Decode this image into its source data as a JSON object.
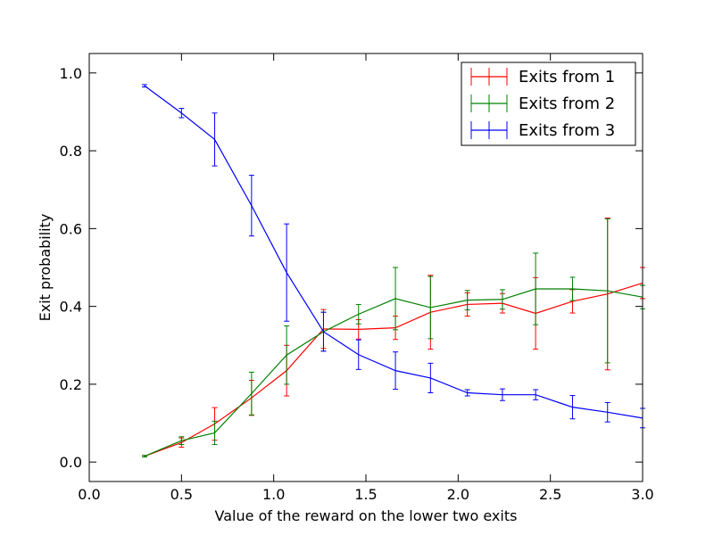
{
  "chart_data": {
    "type": "line",
    "title": "",
    "xlabel": "Value of the reward on the lower two exits",
    "ylabel": "Exit probability",
    "xlim": [
      0.0,
      3.0
    ],
    "ylim": [
      -0.05,
      1.05
    ],
    "x_ticks": [
      {
        "value": 0.0,
        "label": "0.0"
      },
      {
        "value": 0.5,
        "label": "0.5"
      },
      {
        "value": 1.0,
        "label": "1.0"
      },
      {
        "value": 1.5,
        "label": "1.5"
      },
      {
        "value": 2.0,
        "label": "2.0"
      },
      {
        "value": 2.5,
        "label": "2.5"
      },
      {
        "value": 3.0,
        "label": "3.0"
      }
    ],
    "y_ticks": [
      {
        "value": 0.0,
        "label": "0.0"
      },
      {
        "value": 0.2,
        "label": "0.2"
      },
      {
        "value": 0.4,
        "label": "0.4"
      },
      {
        "value": 0.6,
        "label": "0.6"
      },
      {
        "value": 0.8,
        "label": "0.8"
      },
      {
        "value": 1.0,
        "label": "1.0"
      }
    ],
    "grid": false,
    "legend_position": "top-right",
    "x": [
      0.3,
      0.5,
      0.68,
      0.88,
      1.07,
      1.27,
      1.46,
      1.66,
      1.85,
      2.05,
      2.24,
      2.42,
      2.62,
      2.81,
      3.0
    ],
    "series": [
      {
        "name": "Exits from 1",
        "color": "#ff0000",
        "values": [
          0.015,
          0.05,
          0.098,
          0.165,
          0.235,
          0.342,
          0.341,
          0.345,
          0.385,
          0.405,
          0.408,
          0.382,
          0.413,
          0.432,
          0.46
        ],
        "errors": [
          0.002,
          0.012,
          0.042,
          0.045,
          0.065,
          0.05,
          0.025,
          0.03,
          0.095,
          0.03,
          0.025,
          0.092,
          0.03,
          0.195,
          0.04
        ]
      },
      {
        "name": "Exits from 2",
        "color": "#008000",
        "values": [
          0.015,
          0.055,
          0.075,
          0.176,
          0.275,
          0.335,
          0.38,
          0.42,
          0.397,
          0.416,
          0.418,
          0.445,
          0.445,
          0.44,
          0.424
        ],
        "errors": [
          0.002,
          0.01,
          0.03,
          0.055,
          0.075,
          0.05,
          0.025,
          0.08,
          0.08,
          0.025,
          0.025,
          0.092,
          0.03,
          0.185,
          0.03
        ]
      },
      {
        "name": "Exits from 3",
        "color": "#0000ff",
        "values": [
          0.967,
          0.897,
          0.829,
          0.659,
          0.487,
          0.335,
          0.276,
          0.235,
          0.216,
          0.178,
          0.173,
          0.173,
          0.141,
          0.128,
          0.113
        ],
        "errors": [
          0.003,
          0.012,
          0.068,
          0.078,
          0.125,
          0.05,
          0.038,
          0.048,
          0.038,
          0.008,
          0.015,
          0.013,
          0.03,
          0.025,
          0.025
        ]
      }
    ]
  }
}
